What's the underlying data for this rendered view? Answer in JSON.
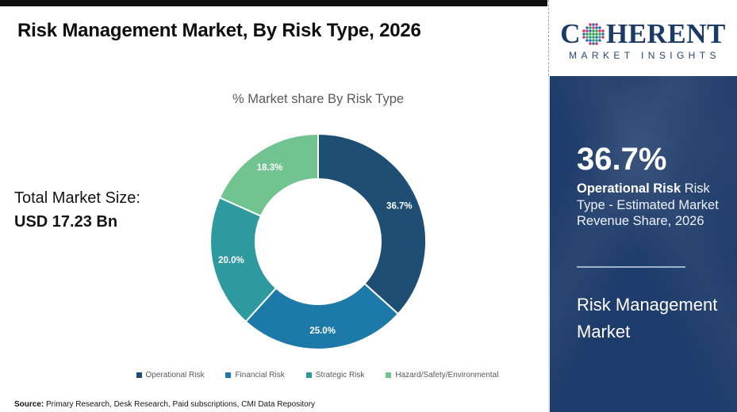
{
  "page": {
    "title": "Risk Management Market, By Risk Type, 2026",
    "source_label": "Source:",
    "source_text": " Primary Research, Desk Research, Paid subscriptions, CMI Data Repository"
  },
  "left_panel": {
    "total_label": "Total Market Size:",
    "total_value": "USD 17.23 Bn"
  },
  "chart_data": {
    "type": "pie",
    "donut": true,
    "title": "% Market share By Risk Type",
    "start_angle_deg": 0,
    "direction": "clockwise",
    "categories": [
      "Operational Risk",
      "Financial Risk",
      "Strategic Risk",
      "Hazard/Safety/Environmental"
    ],
    "values": [
      36.7,
      25.0,
      20.0,
      18.3
    ],
    "labels": [
      "36.7%",
      "25.0%",
      "20.0%",
      "18.3%"
    ],
    "colors": [
      "#1f4e74",
      "#1d79a7",
      "#2f99a0",
      "#71c38f"
    ],
    "legend_position": "bottom",
    "legend_text_color": "#595959"
  },
  "brand": {
    "logo_c": "C",
    "logo_rest": "HERENT",
    "logo_sub": "MARKET INSIGHTS",
    "logo_color": "#1c3a66",
    "globe_colors": {
      "center": "#2e9e4f",
      "mid": [
        "#2e9e4f",
        "#d5306a",
        "#2b6cb0",
        "#2f99a0"
      ],
      "rim": [
        "#d5306a",
        "#2b6cb0"
      ]
    }
  },
  "info_panel": {
    "bg_color": "#1e3c6b",
    "stat_value": "36.7%",
    "stat_bold": "Operational Risk",
    "stat_rest": " Risk Type - Estimated Market Revenue Share, 2026",
    "title": "Risk Management Market"
  }
}
